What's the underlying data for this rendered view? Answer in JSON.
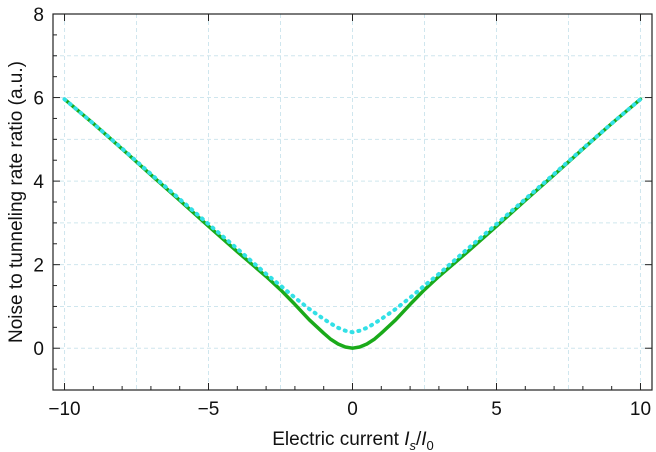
{
  "chart_data": {
    "type": "line",
    "xlabel_main": "Electric current ",
    "xlabel_italic_num": "I",
    "xlabel_sub_num": "s",
    "xlabel_slash": "/",
    "xlabel_italic_den": "I",
    "xlabel_sub_den": "0",
    "ylabel": "Noise to tunneling rate ratio (a.u.)",
    "xlim": [
      -10.4,
      10.4
    ],
    "ylim": [
      -1,
      8
    ],
    "x_ticks": [
      -10,
      -5,
      0,
      5,
      10
    ],
    "x_tick_labels": [
      "−10",
      "−5",
      "0",
      "5",
      "10"
    ],
    "y_ticks": [
      0,
      2,
      4,
      6,
      8
    ],
    "y_tick_labels": [
      "0",
      "2",
      "4",
      "6",
      "8"
    ],
    "grid": true,
    "x": [
      -10,
      -9,
      -8,
      -7,
      -6,
      -5,
      -4,
      -3,
      -2.5,
      -2,
      -1.5,
      -1,
      -0.75,
      -0.5,
      -0.25,
      0,
      0.25,
      0.5,
      0.75,
      1,
      1.5,
      2,
      2.5,
      3,
      4,
      5,
      6,
      7,
      8,
      9,
      10
    ],
    "series": [
      {
        "color": "#1aaa1a",
        "style": "solid",
        "values": [
          5.96,
          5.38,
          4.77,
          4.15,
          3.54,
          2.92,
          2.31,
          1.72,
          1.4,
          1.05,
          0.68,
          0.36,
          0.21,
          0.1,
          0.03,
          0.0,
          0.03,
          0.1,
          0.21,
          0.36,
          0.68,
          1.05,
          1.4,
          1.72,
          2.31,
          2.92,
          3.54,
          4.15,
          4.77,
          5.38,
          5.96
        ]
      },
      {
        "color": "#33e0e6",
        "style": "dotted",
        "values": [
          5.96,
          5.38,
          4.78,
          4.17,
          3.57,
          2.97,
          2.38,
          1.78,
          1.5,
          1.21,
          0.94,
          0.7,
          0.59,
          0.49,
          0.42,
          0.38,
          0.42,
          0.49,
          0.59,
          0.7,
          0.94,
          1.21,
          1.5,
          1.78,
          2.38,
          2.97,
          3.57,
          4.17,
          4.78,
          5.38,
          5.96
        ]
      }
    ]
  }
}
